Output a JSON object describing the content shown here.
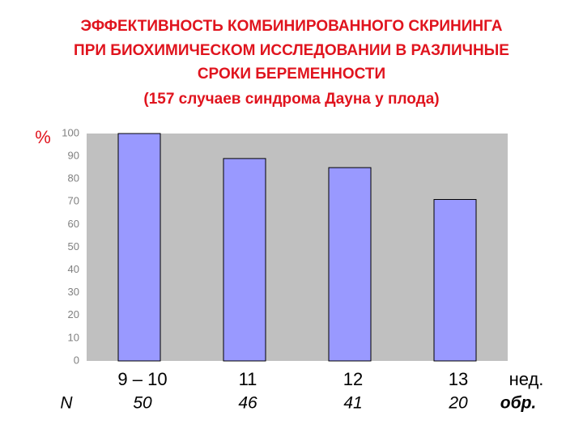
{
  "chart_data": {
    "type": "bar",
    "title": [
      "ЭФФЕКТИВНОСТЬ КОМБИНИРОВАННОГО СКРИНИНГА",
      "ПРИ БИОХИМИЧЕСКОМ ИССЛЕДОВАНИИ В РАЗЛИЧНЫЕ",
      "СРОКИ БЕРЕМЕННОСТИ"
    ],
    "subtitle": "(157 случаев синдрома Дауна у плода)",
    "y_label": "%",
    "categories": [
      "9 – 10",
      "11",
      "12",
      "13"
    ],
    "x_unit": "нед.",
    "values": [
      100,
      89,
      85,
      71
    ],
    "color": "#9999ff",
    "ylim": [
      0,
      100
    ],
    "yticks": [
      0,
      10,
      20,
      30,
      40,
      50,
      60,
      70,
      80,
      90,
      100
    ],
    "grid": false,
    "samples": {
      "label": "N",
      "values": [
        50,
        46,
        41,
        20
      ],
      "unit": "обр."
    }
  }
}
